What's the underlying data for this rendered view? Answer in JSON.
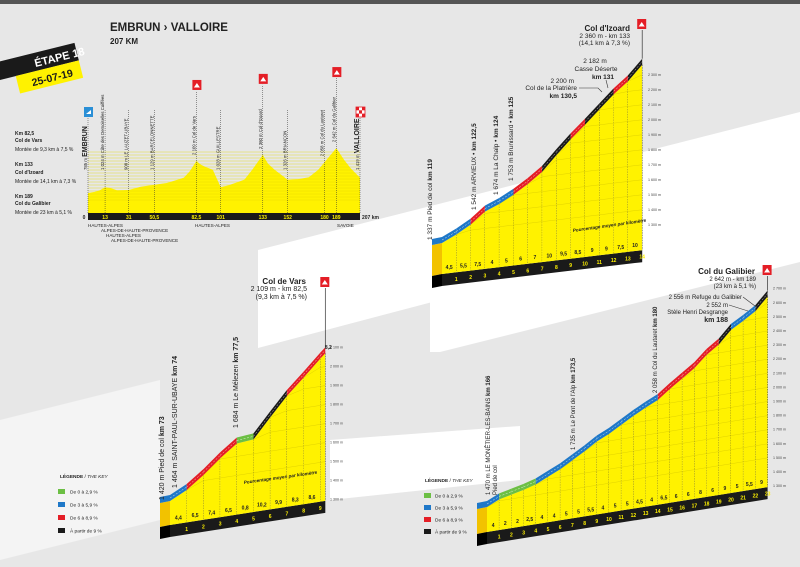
{
  "header": {
    "route": "EMBRUN › VALLOIRE",
    "distance": "207 KM",
    "stage": "ÉTAPE 18",
    "date": "25-07-19"
  },
  "summary": [
    {
      "km": "Km 82,5",
      "col": "Col de Vars",
      "climb": "Montée de 9,3 km à 7,5 %"
    },
    {
      "km": "Km 133",
      "col": "Col d'Izoard",
      "climb": "Montée de 14,1 km à 7,3 %"
    },
    {
      "km": "Km 189",
      "col": "Col du Galibier",
      "climb": "Montée de 23 km à 5,1 %"
    }
  ],
  "legend": {
    "title": "LÉGENDE",
    "title_en": "THE KEY",
    "items": [
      {
        "label": "De 0 à 2,9 %",
        "color": "#6cbf44"
      },
      {
        "label": "De 3 à 5,9 %",
        "color": "#1f78c8"
      },
      {
        "label": "De 6 à 8,9 %",
        "color": "#e41e26"
      },
      {
        "label": "À partir de 9 %",
        "color": "#1a1a1a"
      }
    ]
  },
  "colors": {
    "profile": "#fff200",
    "profile_side": "#f2c200",
    "band": "#1a1a1a",
    "band_text": "#fff200",
    "summit_flag": "#e41e26",
    "start_flag": "#2a8fd6"
  },
  "chart_data": [
    {
      "type": "area",
      "title": "Profil général",
      "x_unit": "km",
      "y_unit": "m",
      "x": [
        0,
        5,
        9,
        13,
        17,
        22,
        27,
        31,
        40,
        50.5,
        60,
        68,
        73,
        77.5,
        82.5,
        86,
        90,
        95,
        101,
        106,
        112,
        119,
        125,
        133,
        137,
        142,
        148,
        152,
        160,
        168,
        175,
        180,
        189,
        195,
        200,
        207
      ],
      "y": [
        785,
        830,
        900,
        1024,
        990,
        900,
        905,
        908,
        1040,
        1129,
        1200,
        1330,
        1420,
        1684,
        2109,
        1950,
        1850,
        1750,
        1028,
        1090,
        1200,
        1337,
        1753,
        2360,
        2000,
        1750,
        1500,
        1326,
        1360,
        1440,
        1735,
        2058,
        2642,
        2150,
        1800,
        1419
      ],
      "points": [
        {
          "km": 0,
          "elev": 785,
          "elev_label": "785 m",
          "name": "EMBRUN",
          "marker": "start"
        },
        {
          "km": 13,
          "elev": 1024,
          "elev_label": "1 024 m",
          "name": "Côte des Demoiselles Coiffées"
        },
        {
          "km": 31,
          "elev": 908,
          "elev_label": "908 m",
          "name": "LE LAUZET-UBAYE"
        },
        {
          "km": 50.5,
          "elev": 1129,
          "elev_label": "1 129 m",
          "name": "BARCELONNETTE"
        },
        {
          "km": 82.5,
          "elev": 2109,
          "elev_label": "2 109 m",
          "name": "Col de Vars",
          "marker": "summit"
        },
        {
          "km": 101,
          "elev": 1028,
          "elev_label": "1 028 m",
          "name": "GUILLESTRE"
        },
        {
          "km": 133,
          "elev": 2360,
          "elev_label": "2 360 m",
          "name": "Col d'Izoard",
          "marker": "summit"
        },
        {
          "km": 152,
          "elev": 1326,
          "elev_label": "1 326 m",
          "name": "BRIANÇON"
        },
        {
          "km": 180,
          "elev": 2058,
          "elev_label": "2 058 m",
          "name": "Col du Lautaret"
        },
        {
          "km": 189,
          "elev": 2642,
          "elev_label": "2 642 m",
          "name": "Col du Galibier",
          "marker": "summit"
        },
        {
          "km": 207,
          "elev": 1419,
          "elev_label": "1 419 m",
          "name": "VALLOIRE",
          "marker": "finish"
        }
      ],
      "km_ticks": [
        "0",
        "13",
        "31",
        "50,5",
        "82,5",
        "101",
        "133",
        "152",
        "180",
        "189"
      ],
      "km_tick_values": [
        0,
        13,
        31,
        50.5,
        82.5,
        101,
        133,
        152,
        180,
        189
      ],
      "end_label": "207 km",
      "regions": [
        "HAUTES-ALPES",
        "ALPES-DE-HAUTE-PROVENCE",
        "HAUTES-ALPES",
        "ALPES-DE-HAUTE-PROVENCE",
        "HAUTES-ALPES",
        "SAVOIE"
      ]
    },
    {
      "type": "area",
      "id": "izoard",
      "title": "Col d'Izoard",
      "summit": "2 360 m - km 133",
      "climb": "(14,1 km à 7,3 %)",
      "start_elev": 1337,
      "gradients": [
        4.5,
        5.5,
        7.5,
        4,
        5,
        6,
        7,
        10,
        9.5,
        8.5,
        9,
        9,
        7.5,
        10
      ],
      "last_length": 1,
      "y_ticks": [
        1300,
        1400,
        1500,
        1600,
        1700,
        1800,
        1900,
        2000,
        2100,
        2200,
        2300
      ],
      "avg_label": "Pourcentage moyen par kilomètre",
      "annotations": [
        {
          "text": "1 337 m Pied de col ",
          "km": "km 119"
        },
        {
          "text": "1 542 m ARVIEUX • ",
          "km": "km 122,5"
        },
        {
          "text": "1 674 m La Chalp • ",
          "km": "km 124"
        },
        {
          "text": "1 753 m Brunissard • ",
          "km": "km 125"
        },
        {
          "elev": "2 200 m",
          "text": "Col de la Platrière",
          "km": "km 130,5"
        },
        {
          "elev": "2 182 m",
          "text": "Casse Déserte",
          "km": "km 131"
        }
      ]
    },
    {
      "type": "area",
      "id": "vars",
      "title": "Col de Vars",
      "summit": "2 109 m - km 82,5",
      "climb": "(9,3 km à 7,5 %)",
      "start_elev": 1420,
      "gradients": [
        4.4,
        6.5,
        7.4,
        6.5,
        0.8,
        10.2,
        9.9,
        8.3,
        8.6,
        8.2
      ],
      "last_length": 0.3,
      "y_ticks": [
        1300,
        1400,
        1500,
        1600,
        1700,
        1800,
        1900,
        2000,
        2100
      ],
      "avg_label": "Pourcentage moyen par kilomètre",
      "annotations": [
        {
          "text": "1 420 m Pied de col ",
          "km": "km 73"
        },
        {
          "text": "1 464 m SAINT-PAUL-SUR-UBAYE ",
          "km": "km 74"
        },
        {
          "text": "1 684 m Le Mélezen ",
          "km": "km 77,5"
        }
      ]
    },
    {
      "type": "area",
      "id": "galibier",
      "title": "Col du Galibier",
      "summit": "2 642 m - km 189",
      "climb": "(23 km à 5,1 %)",
      "start_elev": 1470,
      "gradients": [
        4,
        2,
        2,
        2.5,
        4,
        4,
        5,
        5,
        5.5,
        4,
        5,
        5,
        4.5,
        4,
        6.5,
        6,
        6,
        8,
        6,
        9,
        5,
        5.5,
        9
      ],
      "last_length": 1,
      "y_ticks": [
        1300,
        1400,
        1500,
        1600,
        1700,
        1800,
        1900,
        2000,
        2100,
        2200,
        2300,
        2400,
        2500,
        2600,
        2700
      ],
      "annotations": [
        {
          "text": "1 470 m LE MONÊTIER-LES-BAINS ",
          "km": "km 166",
          "sub": "Pied de col"
        },
        {
          "text": "1 735 m Le Pont de l'Alp ",
          "km": "km 173,5"
        },
        {
          "text": "2 058 m Col du Lautaret ",
          "km": "km 180"
        },
        {
          "text": "2 556 m Refuge du Galibier"
        },
        {
          "elev": "2 552 m",
          "text": "Stèle Henri Desgrange",
          "km": "km 188"
        }
      ]
    }
  ]
}
